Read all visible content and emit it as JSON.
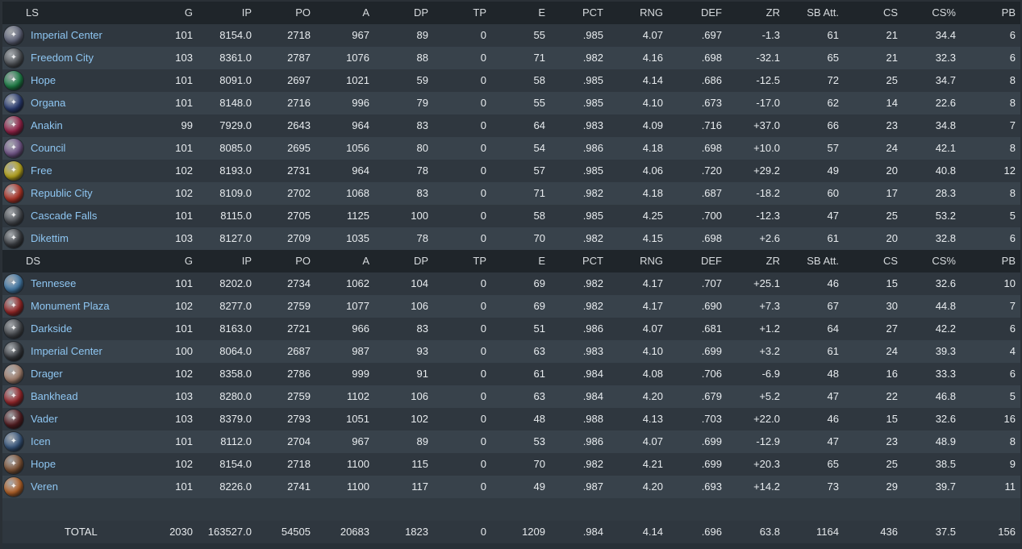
{
  "columns": [
    "G",
    "IP",
    "PO",
    "A",
    "DP",
    "TP",
    "E",
    "PCT",
    "RNG",
    "DEF",
    "ZR",
    "SB Att.",
    "CS",
    "CS%",
    "PB"
  ],
  "groups": [
    {
      "label": "LS",
      "teams": [
        {
          "name": "Imperial Center",
          "logo_icon": "imperial-center-badge-icon",
          "logo_color": "#6a6f86",
          "stats": [
            "101",
            "8154.0",
            "2718",
            "967",
            "89",
            "0",
            "55",
            ".985",
            "4.07",
            ".697",
            "-1.3",
            "61",
            "21",
            "34.4",
            "6"
          ]
        },
        {
          "name": "Freedom City",
          "logo_icon": "freedom-city-badge-icon",
          "logo_color": "#55595e",
          "stats": [
            "103",
            "8361.0",
            "2787",
            "1076",
            "88",
            "0",
            "71",
            ".982",
            "4.16",
            ".698",
            "-32.1",
            "65",
            "21",
            "32.3",
            "6"
          ]
        },
        {
          "name": "Hope",
          "logo_icon": "hope-badge-icon",
          "logo_color": "#1f8a4c",
          "stats": [
            "101",
            "8091.0",
            "2697",
            "1021",
            "59",
            "0",
            "58",
            ".985",
            "4.14",
            ".686",
            "-12.5",
            "72",
            "25",
            "34.7",
            "8"
          ]
        },
        {
          "name": "Organa",
          "logo_icon": "organa-badge-icon",
          "logo_color": "#2c3f7a",
          "stats": [
            "101",
            "8148.0",
            "2716",
            "996",
            "79",
            "0",
            "55",
            ".985",
            "4.10",
            ".673",
            "-17.0",
            "62",
            "14",
            "22.6",
            "8"
          ]
        },
        {
          "name": "Anakin",
          "logo_icon": "anakin-badge-icon",
          "logo_color": "#a3264f",
          "stats": [
            "99",
            "7929.0",
            "2643",
            "964",
            "83",
            "0",
            "64",
            ".983",
            "4.09",
            ".716",
            "+37.0",
            "66",
            "23",
            "34.8",
            "7"
          ]
        },
        {
          "name": "Council",
          "logo_icon": "council-badge-icon",
          "logo_color": "#7b5c93",
          "stats": [
            "101",
            "8085.0",
            "2695",
            "1056",
            "80",
            "0",
            "54",
            ".986",
            "4.18",
            ".698",
            "+10.0",
            "57",
            "24",
            "42.1",
            "8"
          ]
        },
        {
          "name": "Free",
          "logo_icon": "free-badge-icon",
          "logo_color": "#c9b51e",
          "stats": [
            "102",
            "8193.0",
            "2731",
            "964",
            "78",
            "0",
            "57",
            ".985",
            "4.06",
            ".720",
            "+29.2",
            "49",
            "20",
            "40.8",
            "12"
          ]
        },
        {
          "name": "Republic City",
          "logo_icon": "republic-city-badge-icon",
          "logo_color": "#c0392b",
          "stats": [
            "102",
            "8109.0",
            "2702",
            "1068",
            "83",
            "0",
            "71",
            ".982",
            "4.18",
            ".687",
            "-18.2",
            "60",
            "17",
            "28.3",
            "8"
          ]
        },
        {
          "name": "Cascade Falls",
          "logo_icon": "cascade-falls-badge-icon",
          "logo_color": "#50545a",
          "stats": [
            "101",
            "8115.0",
            "2705",
            "1125",
            "100",
            "0",
            "58",
            ".985",
            "4.25",
            ".700",
            "-12.3",
            "47",
            "25",
            "53.2",
            "5"
          ]
        },
        {
          "name": "Dikettim",
          "logo_icon": "dikettim-badge-icon",
          "logo_color": "#3f4247",
          "stats": [
            "103",
            "8127.0",
            "2709",
            "1035",
            "78",
            "0",
            "70",
            ".982",
            "4.15",
            ".698",
            "+2.6",
            "61",
            "20",
            "32.8",
            "6"
          ]
        }
      ]
    },
    {
      "label": "DS",
      "teams": [
        {
          "name": "Tennesee",
          "logo_icon": "tennesee-badge-icon",
          "logo_color": "#4a86b8",
          "stats": [
            "101",
            "8202.0",
            "2734",
            "1062",
            "104",
            "0",
            "69",
            ".982",
            "4.17",
            ".707",
            "+25.1",
            "46",
            "15",
            "32.6",
            "10"
          ]
        },
        {
          "name": "Monument Plaza",
          "logo_icon": "monument-plaza-badge-icon",
          "logo_color": "#a32a2a",
          "stats": [
            "102",
            "8277.0",
            "2759",
            "1077",
            "106",
            "0",
            "69",
            ".982",
            "4.17",
            ".690",
            "+7.3",
            "67",
            "30",
            "44.8",
            "7"
          ]
        },
        {
          "name": "Darkside",
          "logo_icon": "darkside-badge-icon",
          "logo_color": "#4c4f54",
          "stats": [
            "101",
            "8163.0",
            "2721",
            "966",
            "83",
            "0",
            "51",
            ".986",
            "4.07",
            ".681",
            "+1.2",
            "64",
            "27",
            "42.2",
            "6"
          ]
        },
        {
          "name": "Imperial Center",
          "logo_icon": "imperial-center-badge-icon",
          "logo_color": "#3a3d42",
          "stats": [
            "100",
            "8064.0",
            "2687",
            "987",
            "93",
            "0",
            "63",
            ".983",
            "4.10",
            ".699",
            "+3.2",
            "61",
            "24",
            "39.3",
            "4"
          ]
        },
        {
          "name": "Drager",
          "logo_icon": "drager-badge-icon",
          "logo_color": "#b58e7a",
          "stats": [
            "102",
            "8358.0",
            "2786",
            "999",
            "91",
            "0",
            "61",
            ".984",
            "4.08",
            ".706",
            "-6.9",
            "48",
            "16",
            "33.3",
            "6"
          ]
        },
        {
          "name": "Bankhead",
          "logo_icon": "bankhead-badge-icon",
          "logo_color": "#a52a2f",
          "stats": [
            "103",
            "8280.0",
            "2759",
            "1102",
            "106",
            "0",
            "63",
            ".984",
            "4.20",
            ".679",
            "+5.2",
            "47",
            "22",
            "46.8",
            "5"
          ]
        },
        {
          "name": "Vader",
          "logo_icon": "vader-badge-icon",
          "logo_color": "#5a1f24",
          "stats": [
            "103",
            "8379.0",
            "2793",
            "1051",
            "102",
            "0",
            "48",
            ".988",
            "4.13",
            ".703",
            "+22.0",
            "46",
            "15",
            "32.6",
            "16"
          ]
        },
        {
          "name": "Icen",
          "logo_icon": "icen-badge-icon",
          "logo_color": "#3b5c86",
          "stats": [
            "101",
            "8112.0",
            "2704",
            "967",
            "89",
            "0",
            "53",
            ".986",
            "4.07",
            ".699",
            "-12.9",
            "47",
            "23",
            "48.9",
            "8"
          ]
        },
        {
          "name": "Hope",
          "logo_icon": "hope-badge-icon",
          "logo_color": "#8a5a3a",
          "stats": [
            "102",
            "8154.0",
            "2718",
            "1100",
            "115",
            "0",
            "70",
            ".982",
            "4.21",
            ".699",
            "+20.3",
            "65",
            "25",
            "38.5",
            "9"
          ]
        },
        {
          "name": "Veren",
          "logo_icon": "veren-badge-icon",
          "logo_color": "#c26a2b",
          "stats": [
            "101",
            "8226.0",
            "2741",
            "1100",
            "117",
            "0",
            "49",
            ".987",
            "4.20",
            ".693",
            "+14.2",
            "73",
            "29",
            "39.7",
            "11"
          ]
        }
      ]
    }
  ],
  "total": {
    "label": "TOTAL",
    "stats": [
      "2030",
      "163527.0",
      "54505",
      "20683",
      "1823",
      "0",
      "1209",
      ".984",
      "4.14",
      ".696",
      "63.8",
      "1164",
      "436",
      "37.5",
      "156"
    ]
  }
}
